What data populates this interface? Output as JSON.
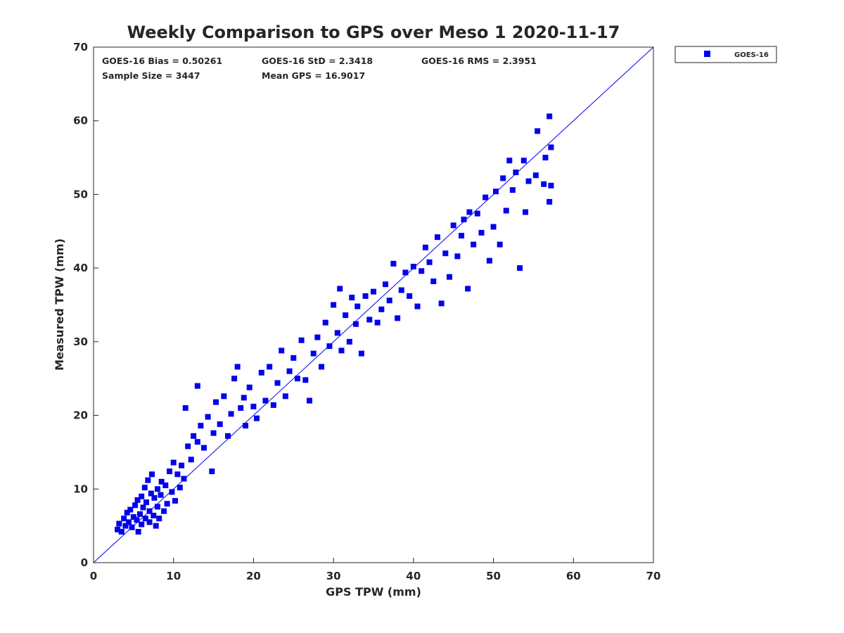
{
  "chart_data": {
    "type": "scatter",
    "title": "Weekly Comparison to GPS over Meso 1 2020-11-17",
    "xlabel": "GPS TPW (mm)",
    "ylabel": "Measured TPW (mm)",
    "xlim": [
      0,
      70
    ],
    "ylim": [
      0,
      70
    ],
    "xticks": [
      "0",
      "10",
      "20",
      "30",
      "40",
      "50",
      "60",
      "70"
    ],
    "yticks": [
      "0",
      "10",
      "20",
      "30",
      "40",
      "50",
      "60",
      "70"
    ],
    "grid": false,
    "legend": {
      "position": "outside-top-right",
      "entries": [
        "GOES-16"
      ]
    },
    "stats": {
      "bias": "GOES-16 Bias = 0.50261",
      "std": "GOES-16 StD = 2.3418",
      "rms": "GOES-16 RMS = 2.3951",
      "sample_size": "Sample Size = 3447",
      "mean_gps": "Mean GPS = 16.9017"
    },
    "reference_line": {
      "label": "1:1 line",
      "from": [
        0,
        0
      ],
      "to": [
        70,
        70
      ]
    },
    "series": [
      {
        "name": "GOES-16",
        "color": "#0000ee",
        "marker": "square",
        "points": [
          [
            3.0,
            4.5
          ],
          [
            3.2,
            5.3
          ],
          [
            3.5,
            4.2
          ],
          [
            3.8,
            6.0
          ],
          [
            4.0,
            5.0
          ],
          [
            4.2,
            6.8
          ],
          [
            4.4,
            5.5
          ],
          [
            4.6,
            7.2
          ],
          [
            4.8,
            4.8
          ],
          [
            5.0,
            6.2
          ],
          [
            5.2,
            7.8
          ],
          [
            5.4,
            5.8
          ],
          [
            5.5,
            8.5
          ],
          [
            5.6,
            4.2
          ],
          [
            5.8,
            6.6
          ],
          [
            6.0,
            9.0
          ],
          [
            6.0,
            5.2
          ],
          [
            6.2,
            7.5
          ],
          [
            6.4,
            10.2
          ],
          [
            6.5,
            6.0
          ],
          [
            6.6,
            8.2
          ],
          [
            6.8,
            11.2
          ],
          [
            7.0,
            5.5
          ],
          [
            7.0,
            7.0
          ],
          [
            7.2,
            9.4
          ],
          [
            7.3,
            12.0
          ],
          [
            7.5,
            6.4
          ],
          [
            7.6,
            8.8
          ],
          [
            7.8,
            5.0
          ],
          [
            8.0,
            10.0
          ],
          [
            8.0,
            7.6
          ],
          [
            8.2,
            6.0
          ],
          [
            8.4,
            9.2
          ],
          [
            8.5,
            11.0
          ],
          [
            8.8,
            7.0
          ],
          [
            9.0,
            10.5
          ],
          [
            9.2,
            8.0
          ],
          [
            9.5,
            12.4
          ],
          [
            9.8,
            9.6
          ],
          [
            10.0,
            13.6
          ],
          [
            10.2,
            8.4
          ],
          [
            10.5,
            12.0
          ],
          [
            10.8,
            10.2
          ],
          [
            11.0,
            13.2
          ],
          [
            11.3,
            11.4
          ],
          [
            11.5,
            21.0
          ],
          [
            11.8,
            15.8
          ],
          [
            12.2,
            14.0
          ],
          [
            12.5,
            17.2
          ],
          [
            13.0,
            24.0
          ],
          [
            13.0,
            16.4
          ],
          [
            13.4,
            18.6
          ],
          [
            13.8,
            15.6
          ],
          [
            14.3,
            19.8
          ],
          [
            14.8,
            12.4
          ],
          [
            15.0,
            17.6
          ],
          [
            15.3,
            21.8
          ],
          [
            15.8,
            18.8
          ],
          [
            16.3,
            22.6
          ],
          [
            16.8,
            17.2
          ],
          [
            17.2,
            20.2
          ],
          [
            17.6,
            25.0
          ],
          [
            18.0,
            26.6
          ],
          [
            18.4,
            21.0
          ],
          [
            18.8,
            22.4
          ],
          [
            19.0,
            18.6
          ],
          [
            19.5,
            23.8
          ],
          [
            20.0,
            21.2
          ],
          [
            20.4,
            19.6
          ],
          [
            21.0,
            25.8
          ],
          [
            21.5,
            22.0
          ],
          [
            22.0,
            26.6
          ],
          [
            22.5,
            21.4
          ],
          [
            23.0,
            24.4
          ],
          [
            23.5,
            28.8
          ],
          [
            24.0,
            22.6
          ],
          [
            24.5,
            26.0
          ],
          [
            25.0,
            27.8
          ],
          [
            25.5,
            25.0
          ],
          [
            26.0,
            30.2
          ],
          [
            26.5,
            24.8
          ],
          [
            27.0,
            22.0
          ],
          [
            27.5,
            28.4
          ],
          [
            28.0,
            30.6
          ],
          [
            28.5,
            26.6
          ],
          [
            29.0,
            32.6
          ],
          [
            29.5,
            29.4
          ],
          [
            30.0,
            35.0
          ],
          [
            30.5,
            31.2
          ],
          [
            30.8,
            37.2
          ],
          [
            31.0,
            28.8
          ],
          [
            31.5,
            33.6
          ],
          [
            32.0,
            30.0
          ],
          [
            32.3,
            36.0
          ],
          [
            32.8,
            32.4
          ],
          [
            33.0,
            34.8
          ],
          [
            33.5,
            28.4
          ],
          [
            34.0,
            36.2
          ],
          [
            34.5,
            33.0
          ],
          [
            35.0,
            36.8
          ],
          [
            35.5,
            32.6
          ],
          [
            36.0,
            34.4
          ],
          [
            36.5,
            37.8
          ],
          [
            37.0,
            35.6
          ],
          [
            37.5,
            40.6
          ],
          [
            38.0,
            33.2
          ],
          [
            38.5,
            37.0
          ],
          [
            39.0,
            39.4
          ],
          [
            39.5,
            36.2
          ],
          [
            40.0,
            40.2
          ],
          [
            40.5,
            34.8
          ],
          [
            41.0,
            39.6
          ],
          [
            41.5,
            42.8
          ],
          [
            42.0,
            40.8
          ],
          [
            42.5,
            38.2
          ],
          [
            43.0,
            44.2
          ],
          [
            43.5,
            35.2
          ],
          [
            44.0,
            42.0
          ],
          [
            44.5,
            38.8
          ],
          [
            45.0,
            45.8
          ],
          [
            45.5,
            41.6
          ],
          [
            46.0,
            44.4
          ],
          [
            46.3,
            46.6
          ],
          [
            46.8,
            37.2
          ],
          [
            47.0,
            47.6
          ],
          [
            47.5,
            43.2
          ],
          [
            48.0,
            47.4
          ],
          [
            48.5,
            44.8
          ],
          [
            49.0,
            49.6
          ],
          [
            49.5,
            41.0
          ],
          [
            50.0,
            45.6
          ],
          [
            50.3,
            50.4
          ],
          [
            50.8,
            43.2
          ],
          [
            51.2,
            52.2
          ],
          [
            51.6,
            47.8
          ],
          [
            52.0,
            54.6
          ],
          [
            52.4,
            50.6
          ],
          [
            52.8,
            53.0
          ],
          [
            53.3,
            40.0
          ],
          [
            53.8,
            54.6
          ],
          [
            54.0,
            47.6
          ],
          [
            54.4,
            51.8
          ],
          [
            55.3,
            52.6
          ],
          [
            55.5,
            58.6
          ],
          [
            56.3,
            51.4
          ],
          [
            56.5,
            55.0
          ],
          [
            57.0,
            49.0
          ],
          [
            57.0,
            60.6
          ],
          [
            57.2,
            56.4
          ],
          [
            57.2,
            51.2
          ]
        ]
      }
    ]
  }
}
